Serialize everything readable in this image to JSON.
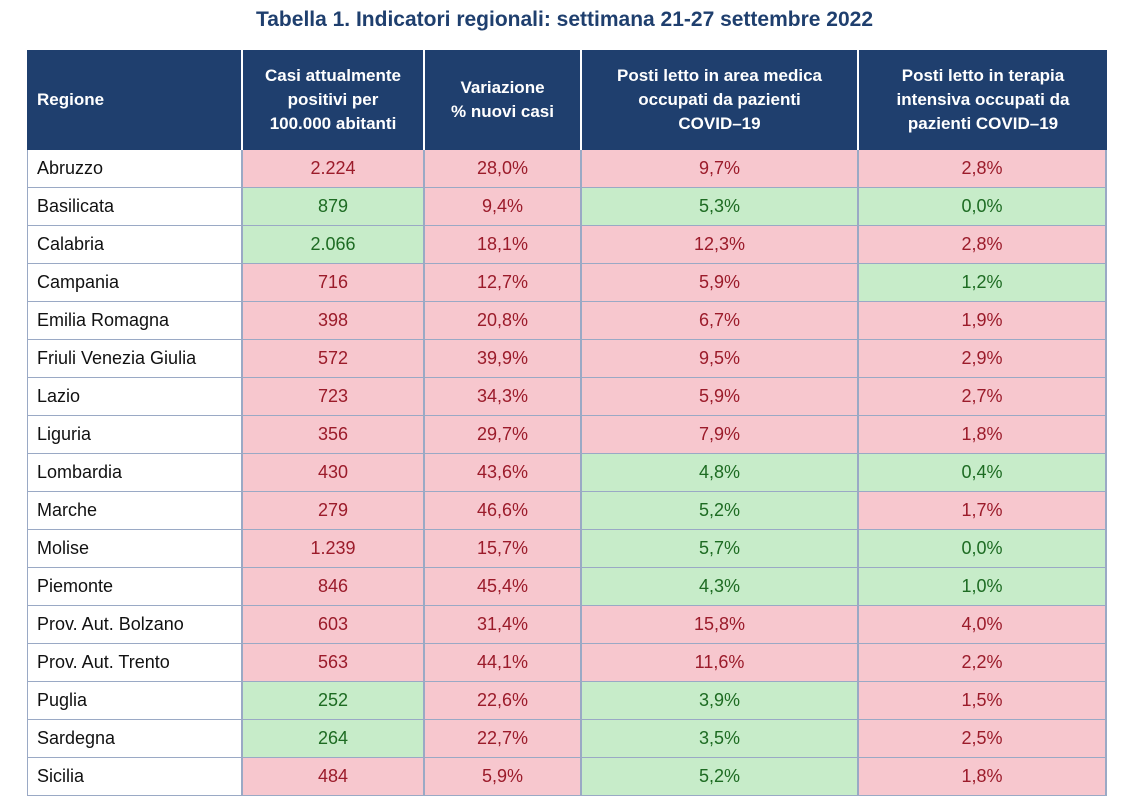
{
  "title": "Tabella 1. Indicatori regionali: settimana 21-27 settembre 2022",
  "colors": {
    "header_bg": "#1f3f6e",
    "red_bg": "#f7c7ce",
    "red_text": "#9b1b2a",
    "green_bg": "#c7ecc9",
    "green_text": "#1d6b22"
  },
  "columns": [
    {
      "key": "regione",
      "lines": [
        "Regione"
      ]
    },
    {
      "key": "casi",
      "lines": [
        "Casi attualmente",
        "positivi per",
        "100.000 abitanti"
      ]
    },
    {
      "key": "variazione",
      "lines": [
        "Variazione",
        "% nuovi casi"
      ]
    },
    {
      "key": "area_medica",
      "lines": [
        "Posti letto in area medica",
        "occupati da pazienti",
        "COVID–19"
      ]
    },
    {
      "key": "terapia_intensiva",
      "lines": [
        "Posti letto in terapia",
        "intensiva occupati da",
        "pazienti COVID–19"
      ]
    }
  ],
  "rows": [
    {
      "regione": "Abruzzo",
      "casi": {
        "value": "2.224",
        "status": "red"
      },
      "variazione": {
        "value": "28,0%",
        "status": "red"
      },
      "area_medica": {
        "value": "9,7%",
        "status": "red"
      },
      "terapia_intensiva": {
        "value": "2,8%",
        "status": "red"
      }
    },
    {
      "regione": "Basilicata",
      "casi": {
        "value": "879",
        "status": "green"
      },
      "variazione": {
        "value": "9,4%",
        "status": "red"
      },
      "area_medica": {
        "value": "5,3%",
        "status": "green"
      },
      "terapia_intensiva": {
        "value": "0,0%",
        "status": "green"
      }
    },
    {
      "regione": "Calabria",
      "casi": {
        "value": "2.066",
        "status": "green"
      },
      "variazione": {
        "value": "18,1%",
        "status": "red"
      },
      "area_medica": {
        "value": "12,3%",
        "status": "red"
      },
      "terapia_intensiva": {
        "value": "2,8%",
        "status": "red"
      }
    },
    {
      "regione": "Campania",
      "casi": {
        "value": "716",
        "status": "red"
      },
      "variazione": {
        "value": "12,7%",
        "status": "red"
      },
      "area_medica": {
        "value": "5,9%",
        "status": "red"
      },
      "terapia_intensiva": {
        "value": "1,2%",
        "status": "green"
      }
    },
    {
      "regione": "Emilia Romagna",
      "casi": {
        "value": "398",
        "status": "red"
      },
      "variazione": {
        "value": "20,8%",
        "status": "red"
      },
      "area_medica": {
        "value": "6,7%",
        "status": "red"
      },
      "terapia_intensiva": {
        "value": "1,9%",
        "status": "red"
      }
    },
    {
      "regione": "Friuli Venezia Giulia",
      "casi": {
        "value": "572",
        "status": "red"
      },
      "variazione": {
        "value": "39,9%",
        "status": "red"
      },
      "area_medica": {
        "value": "9,5%",
        "status": "red"
      },
      "terapia_intensiva": {
        "value": "2,9%",
        "status": "red"
      }
    },
    {
      "regione": "Lazio",
      "casi": {
        "value": "723",
        "status": "red"
      },
      "variazione": {
        "value": "34,3%",
        "status": "red"
      },
      "area_medica": {
        "value": "5,9%",
        "status": "red"
      },
      "terapia_intensiva": {
        "value": "2,7%",
        "status": "red"
      }
    },
    {
      "regione": "Liguria",
      "casi": {
        "value": "356",
        "status": "red"
      },
      "variazione": {
        "value": "29,7%",
        "status": "red"
      },
      "area_medica": {
        "value": "7,9%",
        "status": "red"
      },
      "terapia_intensiva": {
        "value": "1,8%",
        "status": "red"
      }
    },
    {
      "regione": "Lombardia",
      "casi": {
        "value": "430",
        "status": "red"
      },
      "variazione": {
        "value": "43,6%",
        "status": "red"
      },
      "area_medica": {
        "value": "4,8%",
        "status": "green"
      },
      "terapia_intensiva": {
        "value": "0,4%",
        "status": "green"
      }
    },
    {
      "regione": "Marche",
      "casi": {
        "value": "279",
        "status": "red"
      },
      "variazione": {
        "value": "46,6%",
        "status": "red"
      },
      "area_medica": {
        "value": "5,2%",
        "status": "green"
      },
      "terapia_intensiva": {
        "value": "1,7%",
        "status": "red"
      }
    },
    {
      "regione": "Molise",
      "casi": {
        "value": "1.239",
        "status": "red"
      },
      "variazione": {
        "value": "15,7%",
        "status": "red"
      },
      "area_medica": {
        "value": "5,7%",
        "status": "green"
      },
      "terapia_intensiva": {
        "value": "0,0%",
        "status": "green"
      }
    },
    {
      "regione": "Piemonte",
      "casi": {
        "value": "846",
        "status": "red"
      },
      "variazione": {
        "value": "45,4%",
        "status": "red"
      },
      "area_medica": {
        "value": "4,3%",
        "status": "green"
      },
      "terapia_intensiva": {
        "value": "1,0%",
        "status": "green"
      }
    },
    {
      "regione": "Prov. Aut. Bolzano",
      "casi": {
        "value": "603",
        "status": "red"
      },
      "variazione": {
        "value": "31,4%",
        "status": "red"
      },
      "area_medica": {
        "value": "15,8%",
        "status": "red"
      },
      "terapia_intensiva": {
        "value": "4,0%",
        "status": "red"
      }
    },
    {
      "regione": "Prov. Aut. Trento",
      "casi": {
        "value": "563",
        "status": "red"
      },
      "variazione": {
        "value": "44,1%",
        "status": "red"
      },
      "area_medica": {
        "value": "11,6%",
        "status": "red"
      },
      "terapia_intensiva": {
        "value": "2,2%",
        "status": "red"
      }
    },
    {
      "regione": "Puglia",
      "casi": {
        "value": "252",
        "status": "green"
      },
      "variazione": {
        "value": "22,6%",
        "status": "red"
      },
      "area_medica": {
        "value": "3,9%",
        "status": "green"
      },
      "terapia_intensiva": {
        "value": "1,5%",
        "status": "red"
      }
    },
    {
      "regione": "Sardegna",
      "casi": {
        "value": "264",
        "status": "green"
      },
      "variazione": {
        "value": "22,7%",
        "status": "red"
      },
      "area_medica": {
        "value": "3,5%",
        "status": "green"
      },
      "terapia_intensiva": {
        "value": "2,5%",
        "status": "red"
      }
    },
    {
      "regione": "Sicilia",
      "casi": {
        "value": "484",
        "status": "red"
      },
      "variazione": {
        "value": "5,9%",
        "status": "red"
      },
      "area_medica": {
        "value": "5,2%",
        "status": "green"
      },
      "terapia_intensiva": {
        "value": "1,8%",
        "status": "red"
      }
    }
  ]
}
